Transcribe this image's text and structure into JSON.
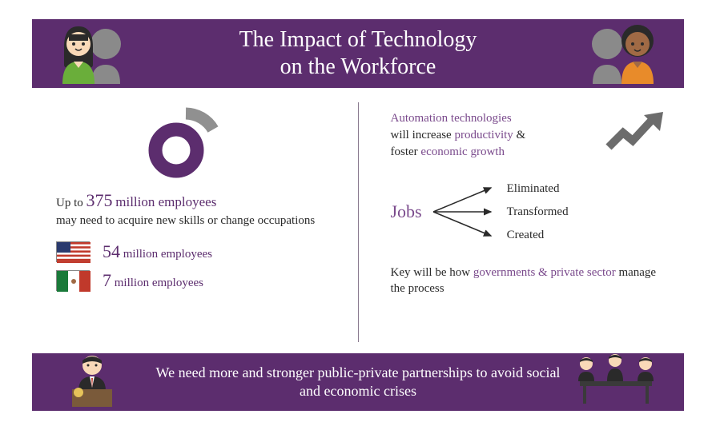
{
  "type": "infographic",
  "colors": {
    "primary_purple": "#5c2d6e",
    "accent_purple": "#7a4a8c",
    "gray_arc": "#909090",
    "arrow_gray": "#6c6c6c",
    "text": "#2a2a2a",
    "white": "#ffffff"
  },
  "header": {
    "title": "The Impact of Technology\non the Workforce",
    "title_fontsize": 28,
    "avatar_left": {
      "skin": "#f9d9b8",
      "hair": "#2a2a2a",
      "shirt1": "#6aae3a",
      "shirt2": "#8a8a8a"
    },
    "avatar_right": {
      "skin": "#a06a45",
      "hair": "#2a2a2a",
      "shirt1": "#e88b2a",
      "shirt2": "#8a8a8a"
    }
  },
  "left": {
    "donut": {
      "ring_color": "#5c2d6e",
      "arc_color": "#909090",
      "outer_r": 34,
      "inner_r": 18
    },
    "stat": {
      "prefix": "Up to ",
      "number": "375",
      "unit": "million employees",
      "rest": "may need to acquire new skills or change occupations"
    },
    "countries": [
      {
        "flag": "usa",
        "number": "54",
        "unit": "million employees"
      },
      {
        "flag": "mexico",
        "number": "7",
        "unit": "million employees"
      }
    ]
  },
  "right": {
    "automation": {
      "l1a": "Automation technologies",
      "l2a": "will increase ",
      "l2b": "productivity",
      "l2c": " &",
      "l3a": "foster ",
      "l3b": "economic growth"
    },
    "jobs": {
      "label": "Jobs",
      "outcomes": [
        "Eliminated",
        "Transformed",
        "Created"
      ]
    },
    "key": {
      "t1": "Key will be how ",
      "t2": "governments & private sector",
      "t3": " manage the process"
    },
    "trend_arrow_color": "#6c6c6c"
  },
  "footer": {
    "text": "We need more and stronger public-private partnerships to avoid social and economic crises"
  }
}
